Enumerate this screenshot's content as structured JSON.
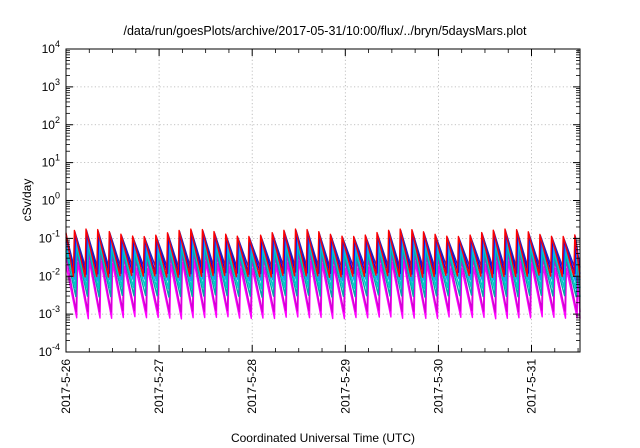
{
  "chart_data": {
    "type": "line",
    "title": "/data/run/goesPlots/archive/2017-05-31/10:00/flux/../bryn/5daysMars.plot",
    "xlabel": "Coordinated Universal Time (UTC)",
    "ylabel": "cSv/day",
    "yscale": "log",
    "ylim": [
      0.0001,
      10000
    ],
    "xlim": [
      "2017-05-26T00:00",
      "2017-05-31T12:30"
    ],
    "grid": true,
    "legend": "none",
    "x_ticks": [
      "2017-5-26",
      "2017-5-27",
      "2017-5-28",
      "2017-5-29",
      "2017-5-30",
      "2017-5-31"
    ],
    "y_ticks": [
      {
        "base": "10",
        "exp": "-4",
        "value": 0.0001
      },
      {
        "base": "10",
        "exp": "-3",
        "value": 0.001
      },
      {
        "base": "10",
        "exp": "-2",
        "value": 0.01
      },
      {
        "base": "10",
        "exp": "-1",
        "value": 0.1
      },
      {
        "base": "10",
        "exp": "0",
        "value": 1
      },
      {
        "base": "10",
        "exp": "1",
        "value": 10
      },
      {
        "base": "10",
        "exp": "2",
        "value": 100
      },
      {
        "base": "10",
        "exp": "3",
        "value": 1000
      },
      {
        "base": "10",
        "exp": "4",
        "value": 10000
      }
    ],
    "signal": {
      "start": "2017-05-26T00:00",
      "end": "2017-05-31T12:30",
      "pattern": "sawtooth",
      "cycles_per_day": 8
    },
    "series": [
      {
        "color": "#ff00ff",
        "peak": 0.02,
        "trough": 0.0008
      },
      {
        "color": "#d400d4",
        "peak": 0.035,
        "trough": 0.0012
      },
      {
        "color": "#00aaaa",
        "peak": 0.045,
        "trough": 0.003
      },
      {
        "color": "#00c8c8",
        "peak": 0.06,
        "trough": 0.005
      },
      {
        "color": "#1e90ff",
        "peak": 0.08,
        "trough": 0.008
      },
      {
        "color": "#0000ff",
        "peak": 0.11,
        "trough": 0.012
      },
      {
        "color": "#2020c0",
        "peak": 0.13,
        "trough": 0.018
      },
      {
        "color": "#ff0000",
        "peak": 0.14,
        "trough": 0.01
      }
    ]
  }
}
